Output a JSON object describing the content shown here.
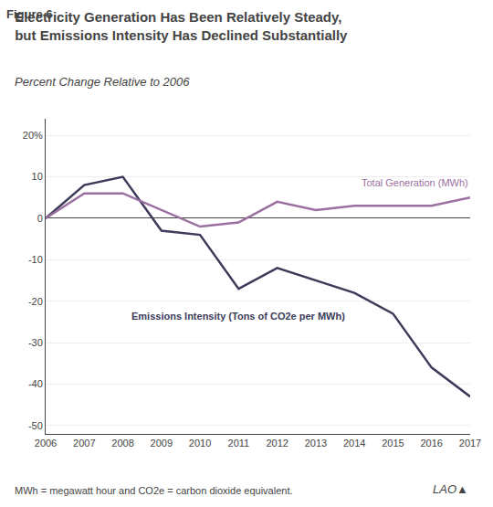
{
  "chart_data": {
    "type": "line",
    "title": "Electricity Generation Has Been Relatively Steady,\nbut Emissions Intensity Has Declined Substantially",
    "subtitle": "Percent Change Relative to 2006",
    "annotations": [
      "Figure 6",
      "MWh = megawatt hour and CO2e = carbon dioxide equivalent.",
      "LAO▲"
    ],
    "x": [
      2006,
      2007,
      2008,
      2009,
      2010,
      2011,
      2012,
      2013,
      2014,
      2015,
      2016,
      2017
    ],
    "series": [
      {
        "name": "Emissions Intensity (Tons of CO2e per MWh)",
        "color": "#3c3c5a",
        "values": [
          0,
          8,
          10,
          -3,
          -4,
          -17,
          -12,
          -15,
          -18,
          -23,
          -36,
          -43
        ]
      },
      {
        "name": "Total Generation (MWh)",
        "color": "#9b6fa0",
        "values": [
          0,
          6,
          6,
          2,
          -2,
          -1,
          4,
          2,
          3,
          3,
          3,
          5
        ]
      }
    ],
    "xlim": [
      2006,
      2017
    ],
    "xticks": [
      2006,
      2007,
      2008,
      2009,
      2010,
      2011,
      2012,
      2013,
      2014,
      2015,
      2016,
      2017
    ],
    "ylim": [
      -52,
      24
    ],
    "yticks": [
      -50,
      -40,
      -30,
      -20,
      -10,
      0,
      10,
      {
        "value": 20,
        "label": "20%"
      }
    ],
    "grid": true
  }
}
